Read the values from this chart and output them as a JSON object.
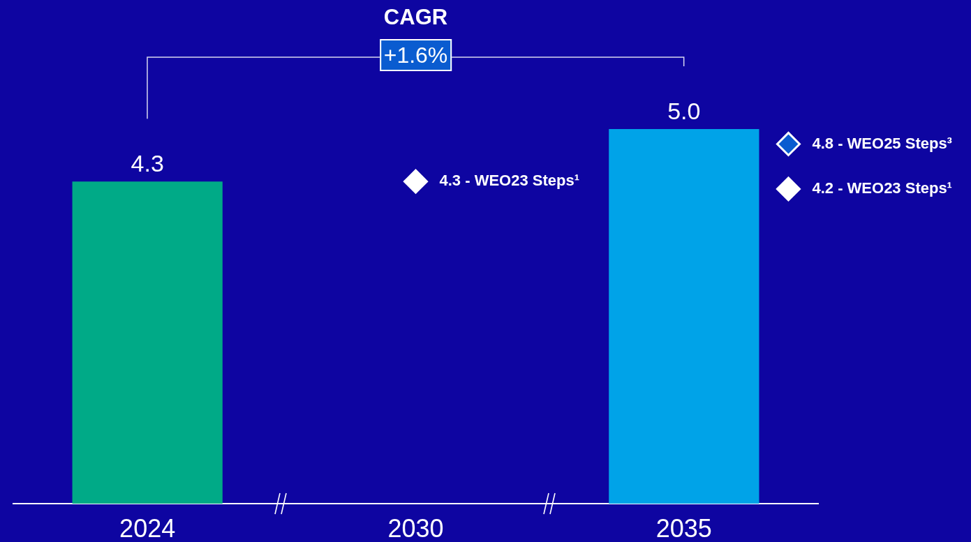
{
  "chart_data": {
    "type": "bar",
    "categories": [
      "2024",
      "2030",
      "2035"
    ],
    "series": [
      {
        "colors": [
          "#00aa87",
          null,
          "#00a3e8"
        ],
        "values": [
          4.3,
          null,
          5.0
        ],
        "value_labels": [
          "4.3",
          null,
          "5.0"
        ]
      },
      {
        "type": "scatter",
        "color": "#ffffff",
        "marker": "diamond",
        "values": [
          null,
          4.3,
          4.2
        ],
        "value_labels": [
          null,
          "4.3 - WEO23 Steps¹",
          "4.2 - WEO23 Steps¹"
        ]
      },
      {
        "type": "scatter",
        "color": "#0a5cd0",
        "marker": "diamond",
        "values": [
          null,
          null,
          4.8
        ],
        "value_labels": [
          null,
          null,
          "4.8 - WEO25 Steps³"
        ]
      }
    ],
    "annotations": [
      "CAGR",
      "+1.6%"
    ],
    "tick_labels": "x"
  }
}
